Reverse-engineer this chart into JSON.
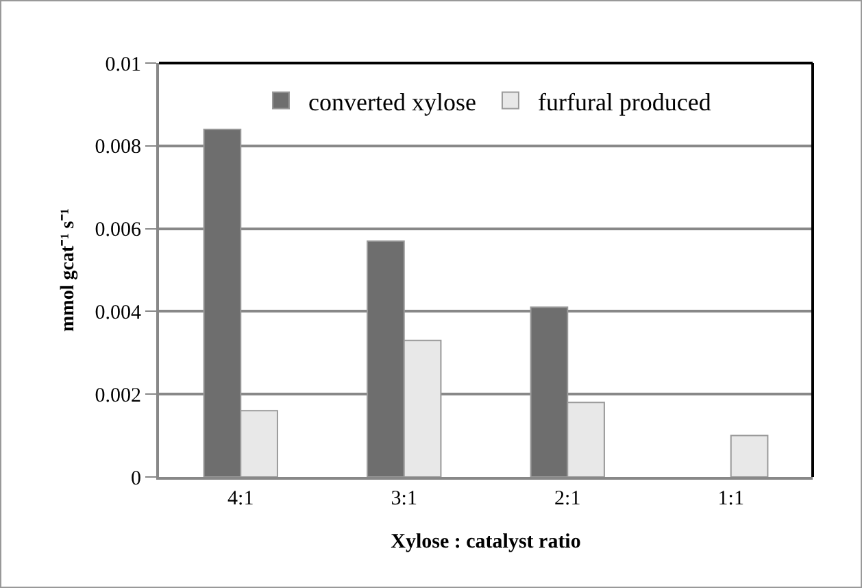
{
  "chart_data": {
    "type": "bar",
    "xlabel": "Xylose : catalyst ratio",
    "ylabel": "mmol gcat⁻¹ s⁻¹",
    "categories": [
      "4:1",
      "3:1",
      "2:1",
      "1:1"
    ],
    "series": [
      {
        "name": "converted xylose",
        "color": "#6e6e6e",
        "values": [
          0.0084,
          0.0057,
          0.0041,
          null
        ]
      },
      {
        "name": "furfural produced",
        "color": "#e8e8e8",
        "values": [
          0.0016,
          0.0033,
          0.0018,
          0.001
        ]
      }
    ],
    "ylim": [
      0,
      0.01
    ],
    "yticks": [
      0,
      0.002,
      0.004,
      0.006,
      0.008,
      0.01
    ],
    "grid": "y",
    "legend": "top"
  }
}
